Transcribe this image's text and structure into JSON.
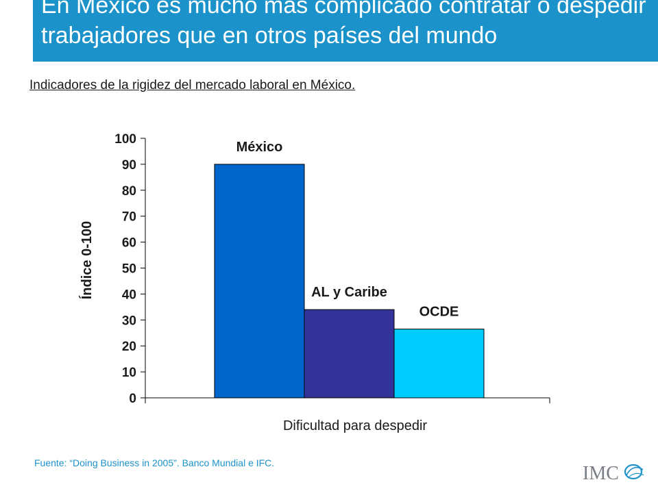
{
  "slide": {
    "title": "En México es mucho más complicado contratar o despedir trabajadores que en otros países del mundo",
    "subtitle": "Indicadores de la rigidez del mercado laboral en México.",
    "source": "Fuente: “Doing Business in 2005”. Banco Mundial e IFC.",
    "logo_text": "IMCO",
    "colors": {
      "title_bar": "#1b92c9",
      "source_text": "#1b92c9"
    }
  },
  "chart_data": {
    "type": "bar",
    "title": "",
    "xlabel": "Dificultad para despedir",
    "ylabel": "Índice 0-100",
    "ylim": [
      0,
      100
    ],
    "yticks": [
      0,
      10,
      20,
      30,
      40,
      50,
      60,
      70,
      80,
      90,
      100
    ],
    "categories": [
      "Dificultad para despedir"
    ],
    "series": [
      {
        "name": "México",
        "values": [
          90
        ],
        "color": "#0066cc"
      },
      {
        "name": "AL y Caribe",
        "values": [
          34
        ],
        "color": "#333399"
      },
      {
        "name": "OCDE",
        "values": [
          26.5
        ],
        "color": "#00ccff"
      }
    ],
    "grid": false,
    "legend": "none"
  }
}
